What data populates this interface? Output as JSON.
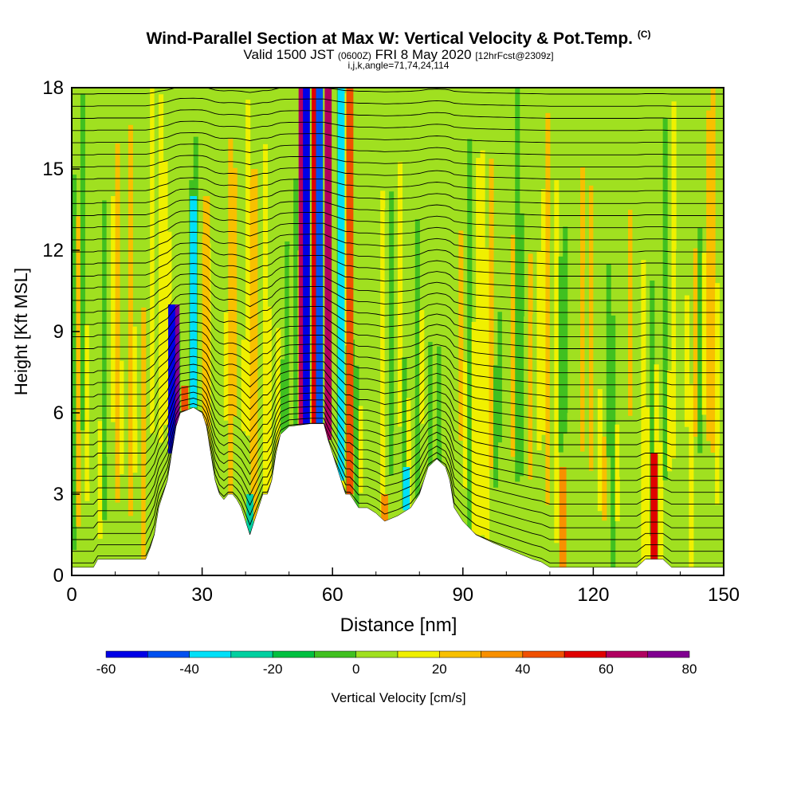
{
  "header": {
    "title": "Wind-Parallel Section at Max W: Vertical Velocity & Pot.Temp.",
    "copyright": "(C)",
    "valid_prefix": "Valid 1500 JST",
    "valid_utc": "(0600Z)",
    "valid_date": "FRI 8 May 2020",
    "forecast_info": "[12hrFcst@2309z]",
    "section_params": "i,j,k,angle=71,74,24,114"
  },
  "chart_data": {
    "type": "heatmap",
    "xlabel": "Distance [nm]",
    "ylabel": "Height [Kft MSL]",
    "xlim": [
      0,
      150
    ],
    "ylim": [
      0,
      18
    ],
    "x_ticks": [
      0,
      30,
      60,
      90,
      120,
      150
    ],
    "y_ticks": [
      0,
      3,
      6,
      9,
      12,
      15,
      18
    ],
    "colorbar": {
      "label": "Vertical Velocity [cm/s]",
      "ticks": [
        -60,
        -40,
        -20,
        0,
        20,
        40,
        60,
        80
      ],
      "levels": [
        -60,
        -50,
        -40,
        -30,
        -20,
        -10,
        0,
        10,
        20,
        30,
        40,
        50,
        60,
        70,
        80
      ],
      "colors": [
        "#0000e6",
        "#0050f0",
        "#00e0f8",
        "#00d0a0",
        "#00c040",
        "#40c020",
        "#a0e020",
        "#f0f000",
        "#f8c000",
        "#f89000",
        "#f05000",
        "#e00000",
        "#b00060",
        "#800090"
      ]
    },
    "terrain": [
      [
        0,
        0.3
      ],
      [
        5,
        0.3
      ],
      [
        6,
        0.6
      ],
      [
        17,
        0.6
      ],
      [
        18,
        1
      ],
      [
        19,
        1.5
      ],
      [
        20,
        2.5
      ],
      [
        21,
        3
      ],
      [
        22,
        3.5
      ],
      [
        23,
        4.5
      ],
      [
        24,
        5.5
      ],
      [
        25,
        6
      ],
      [
        28,
        6.2
      ],
      [
        30,
        6
      ],
      [
        31,
        5.5
      ],
      [
        32,
        4.5
      ],
      [
        33,
        3.5
      ],
      [
        34,
        3
      ],
      [
        35,
        2.8
      ],
      [
        36,
        3
      ],
      [
        37,
        3
      ],
      [
        38,
        2.8
      ],
      [
        39,
        2.5
      ],
      [
        40,
        2
      ],
      [
        41,
        1.5
      ],
      [
        42,
        2
      ],
      [
        43,
        2.5
      ],
      [
        44,
        3
      ],
      [
        45,
        3
      ],
      [
        46,
        3.5
      ],
      [
        47,
        4.5
      ],
      [
        48,
        5.2
      ],
      [
        50,
        5.5
      ],
      [
        55,
        5.6
      ],
      [
        58,
        5.6
      ],
      [
        59,
        5
      ],
      [
        60,
        4.5
      ],
      [
        61,
        4
      ],
      [
        62,
        3.5
      ],
      [
        63,
        3
      ],
      [
        64,
        3
      ],
      [
        66,
        2.5
      ],
      [
        68,
        2.5
      ],
      [
        70,
        2.3
      ],
      [
        72,
        2
      ],
      [
        75,
        2.2
      ],
      [
        78,
        2.5
      ],
      [
        80,
        3
      ],
      [
        82,
        4
      ],
      [
        84,
        4.3
      ],
      [
        86,
        4
      ],
      [
        87,
        3.5
      ],
      [
        88,
        2.5
      ],
      [
        90,
        2
      ],
      [
        93,
        1.5
      ],
      [
        97,
        1.2
      ],
      [
        100,
        1
      ],
      [
        103,
        0.8
      ],
      [
        106,
        0.6
      ],
      [
        108,
        0.5
      ],
      [
        110,
        0.3
      ],
      [
        130,
        0.3
      ],
      [
        132,
        0.6
      ],
      [
        136,
        0.6
      ],
      [
        138,
        0.3
      ],
      [
        150,
        0.3
      ]
    ],
    "updraft_bands": [
      {
        "x": 24,
        "ztop": 10,
        "w": 70
      },
      {
        "x": 26,
        "ztop": 7,
        "w": 40
      },
      {
        "x": 53,
        "ztop": 18,
        "w": 65
      },
      {
        "x": 56,
        "ztop": 18,
        "w": 55
      },
      {
        "x": 59,
        "ztop": 18,
        "w": 60
      },
      {
        "x": 64,
        "ztop": 18,
        "w": 45
      },
      {
        "x": 31,
        "ztop": 14,
        "w": 25
      },
      {
        "x": 42,
        "ztop": 15,
        "w": 22
      },
      {
        "x": 113,
        "ztop": 4,
        "w": 35
      },
      {
        "x": 134,
        "ztop": 4.5,
        "w": 55
      },
      {
        "x": 72,
        "ztop": 3,
        "w": 30
      }
    ],
    "downdraft_bands": [
      {
        "x": 23,
        "ztop": 10,
        "w": -60
      },
      {
        "x": 28,
        "ztop": 14,
        "w": -35
      },
      {
        "x": 54,
        "ztop": 18,
        "w": -55
      },
      {
        "x": 57,
        "ztop": 18,
        "w": -50
      },
      {
        "x": 62,
        "ztop": 18,
        "w": -40
      },
      {
        "x": 41,
        "ztop": 3,
        "w": -30
      },
      {
        "x": 77,
        "ztop": 4,
        "w": -35
      }
    ]
  }
}
